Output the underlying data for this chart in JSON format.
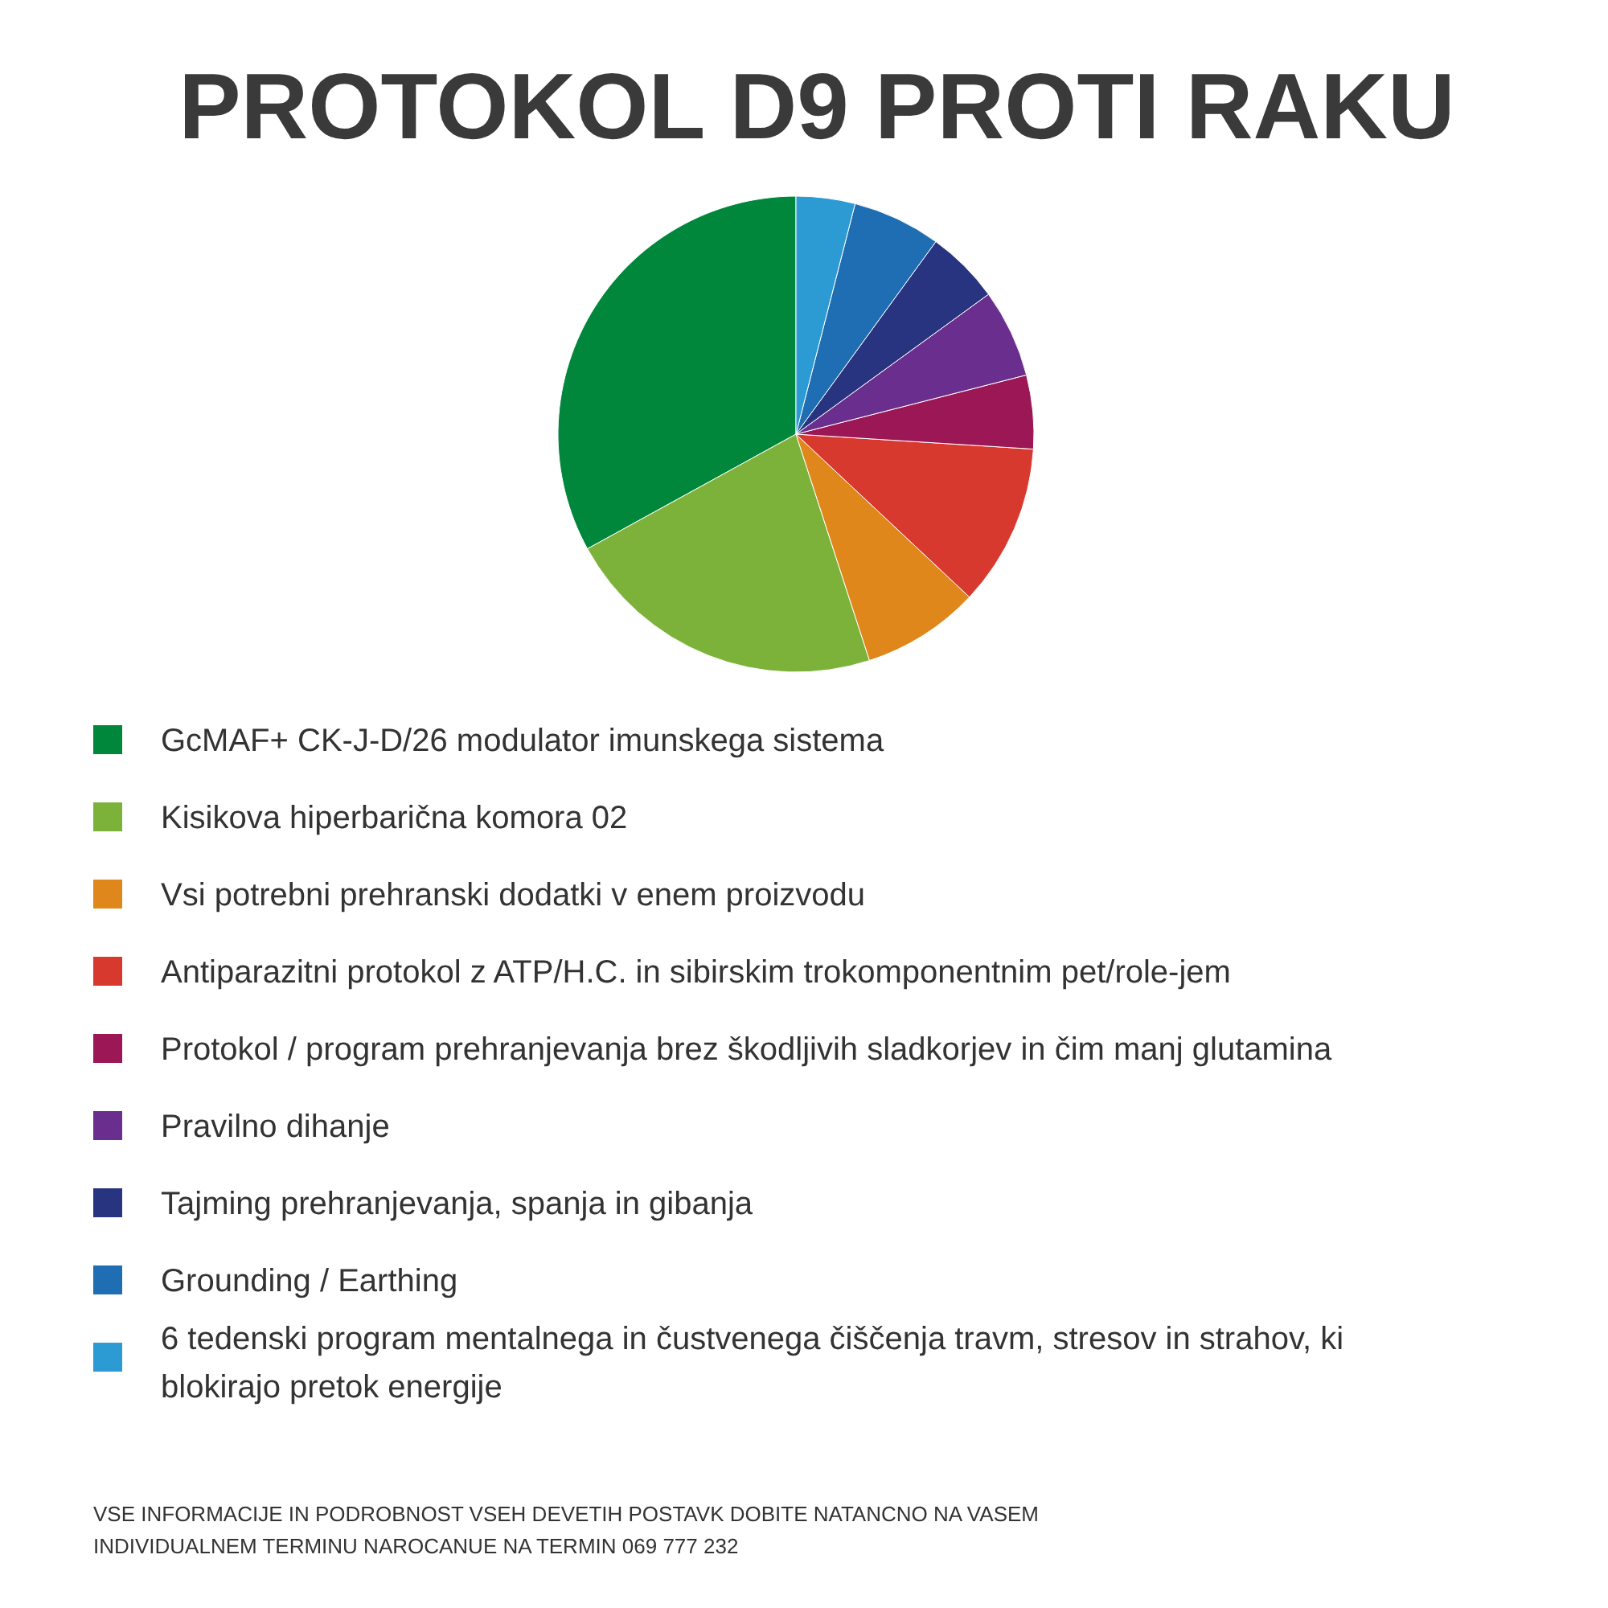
{
  "chart_data": {
    "type": "pie",
    "title": "PROTOKOL D9 PROTI RAKU",
    "categories": [
      "GcMAF+ CK-J-D/26 modulator imunskega sistema",
      "Kisikova hiperbarična komora 02",
      "Vsi potrebni prehranski dodatki v enem proizvodu",
      "Antiparazitni protokol z ATP/H.C. in sibirskim trokomponentnim pet/role-jem",
      "Protokol / program prehranjevanja brez škodljivih sladkorjev in čim manj glutamina",
      "Pravilno dihanje",
      "Tajming prehranjevanja, spanja in gibanja",
      "Grounding / Earthing",
      "6 tedenski program mentalnega in čustvenega čiščenja travm, stresov in strahov, ki blokirajo pretok energije"
    ],
    "values": [
      33,
      22,
      8,
      11,
      5,
      6,
      5,
      6,
      4
    ],
    "colors": [
      "#00873c",
      "#7db23a",
      "#e0871c",
      "#d8392e",
      "#9b1756",
      "#6a2e8e",
      "#283480",
      "#1f6db2",
      "#2c9ad3"
    ],
    "legend": "bottom",
    "annotations": [
      "VSE INFORMACIJE IN PODROBNOST VSEH DEVETIH POSTAVK DOBITE NATANCNO NA VASEM INDIVIDUALNEM TERMINU NAROCANUE NA TERMIN 069 777 232"
    ]
  }
}
